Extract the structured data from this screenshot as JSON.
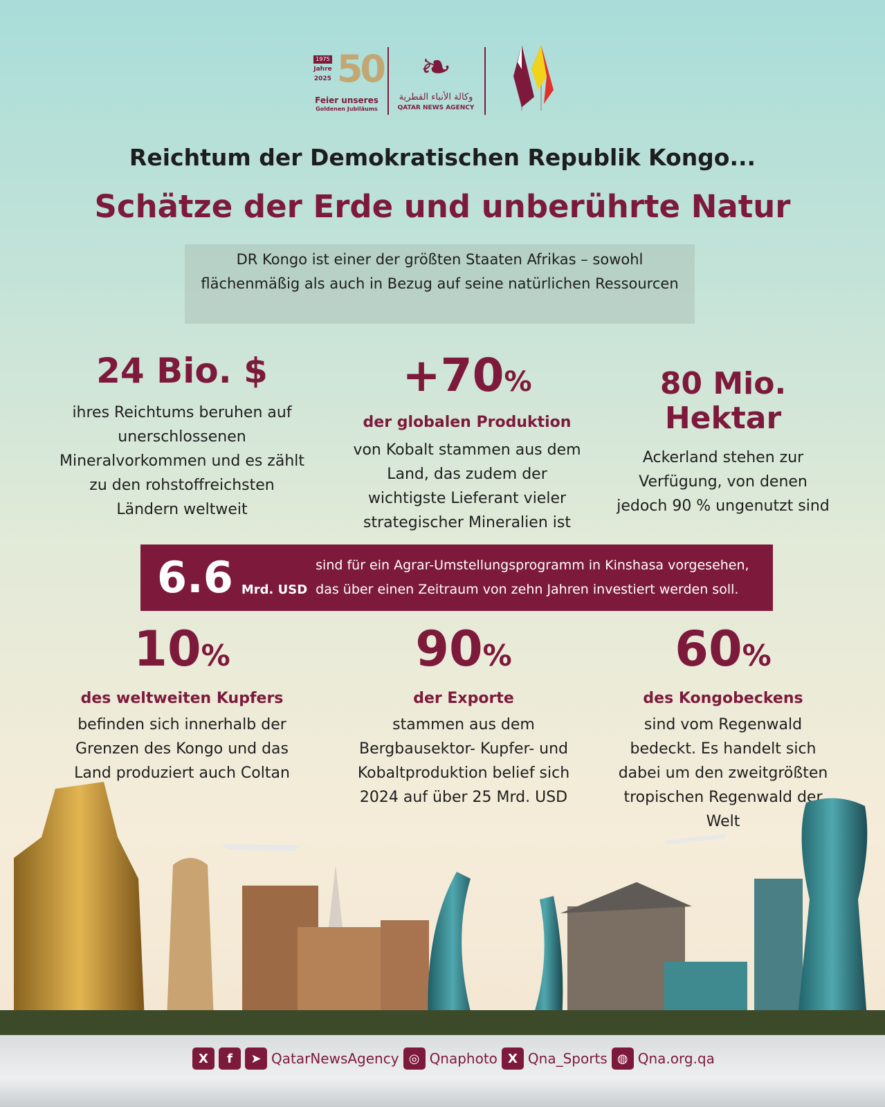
{
  "header": {
    "jubilee": {
      "year_start": "1975",
      "number": "50",
      "jahre": "Jahre",
      "year_end": "2025",
      "caption1": "Feier unseres",
      "caption2": "Goldenen Jubiläums"
    },
    "agency": {
      "arabic": "وكالة الأنباء القطرية",
      "english": "QATAR NEWS AGENCY"
    },
    "flags": [
      "Qatar",
      "Republic of the Congo"
    ]
  },
  "title": "Reichtum der Demokratischen Republik Kongo...",
  "subtitle": "Schätze der Erde und unberührte Natur",
  "intro": "DR Kongo ist einer der größten Staaten Afrikas – sowohl flächenmäßig als auch in Bezug auf seine natürlichen Ressourcen",
  "stats_top": [
    {
      "value": "24 Bio. $",
      "label": "",
      "desc": "ihres Reichtums beruhen auf unerschlossenen Mineralvorkommen und es zählt zu den rohstoffreichsten Ländern weltweit"
    },
    {
      "value": "+70",
      "unit": "%",
      "label": "der globalen Produktion",
      "desc": "von Kobalt stammen aus dem Land, das zudem der wichtigste Lieferant vieler strategischer Mineralien ist"
    },
    {
      "value": "80 Mio. Hektar",
      "label": "",
      "desc": "Ackerland stehen zur Verfügung, von denen jedoch 90 % ungenutzt sind"
    }
  ],
  "banner": {
    "value": "6.6",
    "unit": "Mrd. USD",
    "text": "sind für ein Agrar-Umstellungsprogramm in Kinshasa vorgesehen, das über einen Zeitraum von zehn Jahren investiert werden soll."
  },
  "stats_bottom": [
    {
      "value": "10",
      "unit": "%",
      "label": "des weltweiten Kupfers",
      "desc": "befinden sich innerhalb der Grenzen des Kongo und das Land produziert auch Coltan"
    },
    {
      "value": "90",
      "unit": "%",
      "label": "der Exporte",
      "desc": "stammen aus dem Bergbausektor- Kupfer- und Kobaltproduktion belief sich 2024 auf über 25 Mrd. USD"
    },
    {
      "value": "60",
      "unit": "%",
      "label": "des Kongobeckens",
      "desc": "sind vom Regenwald bedeckt. Es handelt sich dabei um den zweitgrößten tropischen Regenwald der Welt"
    }
  ],
  "footer": {
    "handle1": "QatarNewsAgency",
    "handle2": "Qnaphoto",
    "handle3": "Qna_Sports",
    "website": "Qna.org.qa"
  },
  "colors": {
    "accent": "#7d1a3c",
    "gold": "#c2a774"
  }
}
